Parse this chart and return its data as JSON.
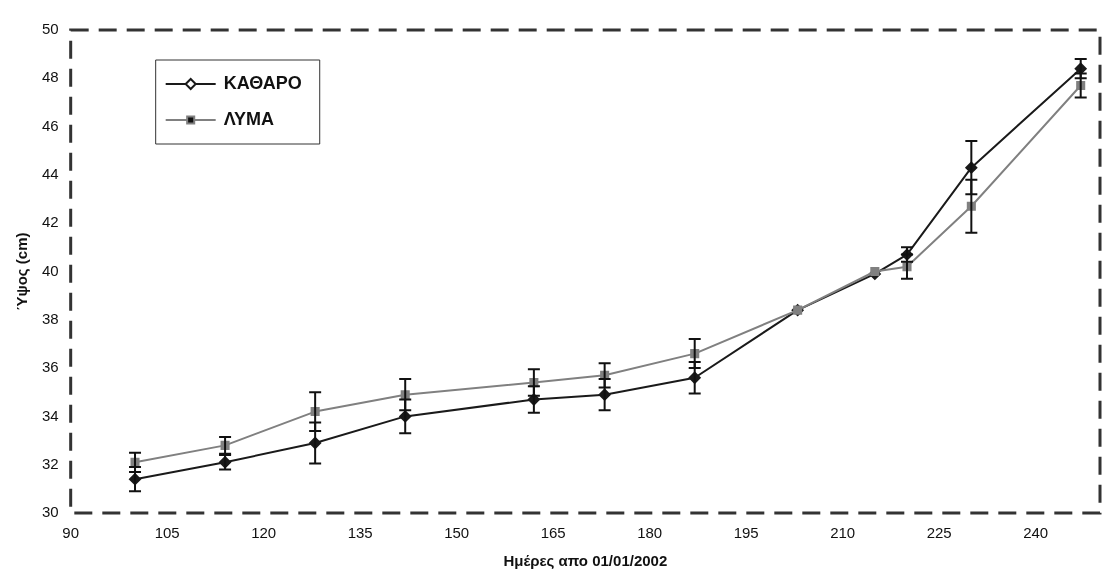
{
  "chart_data": {
    "type": "line",
    "xlabel": "Ημέρες απο 01/01/2002",
    "ylabel": "Ύψος (cm)",
    "xlim": [
      90,
      250
    ],
    "xticks": [
      90,
      105,
      120,
      135,
      150,
      165,
      180,
      195,
      210,
      225,
      240
    ],
    "ylim": [
      30,
      50
    ],
    "yticks": [
      30,
      32,
      34,
      36,
      38,
      40,
      42,
      44,
      46,
      48,
      50
    ],
    "grid": false,
    "legend": "top left",
    "x": [
      100,
      114,
      128,
      142,
      162,
      173,
      187,
      203,
      215,
      220,
      230,
      247
    ],
    "series": [
      {
        "name": "ΚΑΘΑΡΟ",
        "color": "#1a1a1a",
        "marker": "diamond",
        "values": [
          31.4,
          32.1,
          32.9,
          34.0,
          34.7,
          34.9,
          35.6,
          38.4,
          39.9,
          40.7,
          44.3,
          48.4
        ],
        "errors": [
          0.5,
          0.3,
          0.85,
          0.7,
          0.55,
          0.65,
          0.65,
          null,
          null,
          0.3,
          1.1,
          0.4
        ]
      },
      {
        "name": "ΛΥΜΑ",
        "color": "#808080",
        "marker": "square",
        "values": [
          32.1,
          32.8,
          34.2,
          34.9,
          35.4,
          35.7,
          36.6,
          38.4,
          40.0,
          40.2,
          42.7,
          47.7
        ],
        "errors": [
          0.4,
          0.35,
          0.8,
          0.65,
          0.55,
          0.5,
          0.6,
          null,
          null,
          0.5,
          1.1,
          0.5
        ]
      }
    ]
  }
}
